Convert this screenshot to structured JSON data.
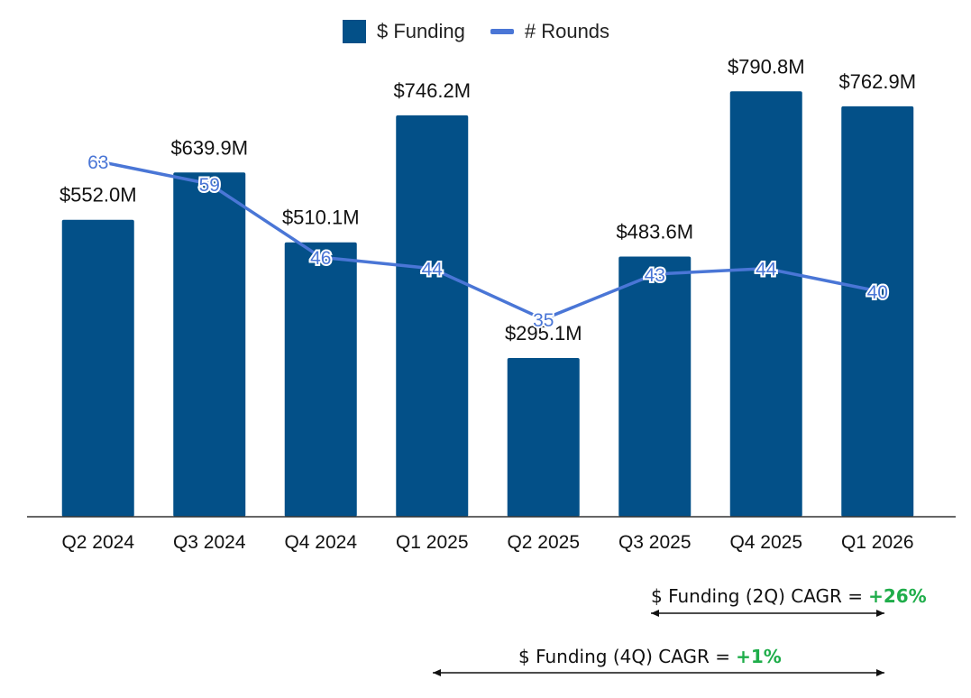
{
  "legend": {
    "funding_label": "$ Funding",
    "rounds_label": "# Rounds"
  },
  "chart_data": {
    "type": "bar",
    "categories": [
      "Q2 2024",
      "Q3 2024",
      "Q4 2024",
      "Q1 2025",
      "Q2 2025",
      "Q3 2025",
      "Q4 2025",
      "Q1 2026"
    ],
    "series": [
      {
        "name": "$ Funding",
        "type": "bar",
        "axis": "left",
        "values": [
          552.0,
          639.9,
          510.1,
          746.2,
          295.1,
          483.6,
          790.8,
          762.9
        ],
        "labels": [
          "$552.0M",
          "$639.9M",
          "$510.1M",
          "$746.2M",
          "$295.1M",
          "$483.6M",
          "$790.8M",
          "$762.9M"
        ]
      },
      {
        "name": "# Rounds",
        "type": "line",
        "axis": "right",
        "values": [
          63,
          59,
          46,
          44,
          35,
          43,
          44,
          40
        ]
      }
    ],
    "ylim_left": [
      0,
      860
    ],
    "ylim_right": [
      0,
      82
    ],
    "grid": false,
    "legend_position": "top-center"
  },
  "annotations": {
    "cagr_2q": {
      "label": "$ Funding (2Q) CAGR =",
      "value": "+26%"
    },
    "cagr_4q": {
      "label": "$ Funding (4Q) CAGR =",
      "value": "+1%"
    }
  },
  "colors": {
    "bar": "#035088",
    "line": "#4a76d6",
    "cagr_positive": "#1fad4a"
  }
}
